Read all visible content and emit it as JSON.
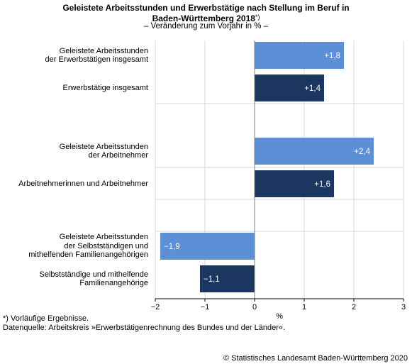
{
  "title_line1": "Geleistete Arbeitsstunden und Erwerbstätige nach Stellung im Beruf in",
  "title_line2": "Baden-Württemberg 2018",
  "title_sup": "*)",
  "subtitle": "– Veränderung zum Vorjahr in %  –",
  "footnote1": "*) Vorläufige Ergebnisse.",
  "footnote2": "Datenquelle: Arbeitskreis »Erwerbstätigenrechnung des Bundes und der Länder«.",
  "copyright": "© Statistisches Landesamt Baden-Württemberg 2020",
  "colors": {
    "light_bar": "#5b8fd6",
    "dark_bar": "#1b365f",
    "grid": "#d9d9d9",
    "zero_line": "#7f7f7f"
  },
  "chart_data": {
    "type": "bar",
    "orientation": "horizontal",
    "xlabel": "%",
    "xlim": [
      -2,
      3
    ],
    "xticks": [
      -2,
      -1,
      0,
      1,
      2,
      3
    ],
    "xtick_labels": [
      "−2",
      "−1",
      "0",
      "1",
      "2",
      "3"
    ],
    "grid": "vertical",
    "bars": [
      {
        "label_lines": [
          "Geleistete Arbeitsstunden",
          "der Erwerbstätigen insgesamt"
        ],
        "value": 1.8,
        "value_label": "+1,8",
        "style": "light"
      },
      {
        "label_lines": [
          "Erwerbstätige insgesamt"
        ],
        "value": 1.4,
        "value_label": "+1,4",
        "style": "dark"
      },
      {
        "label_lines": [
          "Geleistete Arbeitsstunden",
          "der Arbeitnehmer"
        ],
        "value": 2.4,
        "value_label": "+2,4",
        "style": "light"
      },
      {
        "label_lines": [
          "Arbeitnehmerinnen und Arbeitnehmer"
        ],
        "value": 1.6,
        "value_label": "+1,6",
        "style": "dark"
      },
      {
        "label_lines": [
          "Geleistete Arbeitsstunden",
          "der Selbstständigen und",
          "mithelfenden Familienangehörigen"
        ],
        "value": -1.9,
        "value_label": "−1,9",
        "style": "light"
      },
      {
        "label_lines": [
          "Selbstständige und mithelfende",
          "Familienangehörige"
        ],
        "value": -1.1,
        "value_label": "−1,1",
        "style": "dark"
      }
    ]
  }
}
